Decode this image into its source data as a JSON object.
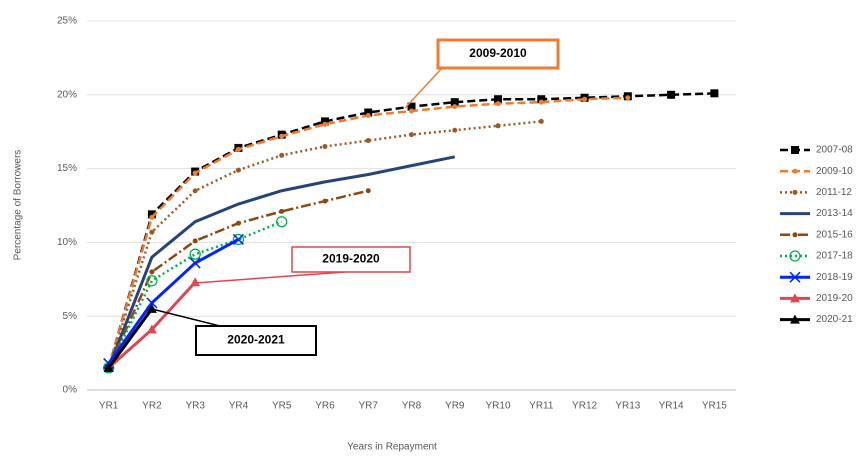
{
  "chart_data": {
    "type": "line",
    "ylabel": "Percentage of Borrowers",
    "xlabel": "Years in Repayment",
    "categories": [
      "YR1",
      "YR2",
      "YR3",
      "YR4",
      "YR5",
      "YR6",
      "YR7",
      "YR8",
      "YR9",
      "YR10",
      "YR11",
      "YR12",
      "YR13",
      "YR14",
      "YR15"
    ],
    "ylim": [
      0,
      25
    ],
    "yticks": [
      {
        "value": 0,
        "label": "0%"
      },
      {
        "value": 5,
        "label": "5%"
      },
      {
        "value": 10,
        "label": "10%"
      },
      {
        "value": 15,
        "label": "15%"
      },
      {
        "value": 20,
        "label": "20%"
      },
      {
        "value": 25,
        "label": "25%"
      }
    ],
    "grid": true,
    "legend": "right",
    "series": [
      {
        "name": "2007-08",
        "color": "#000000",
        "dash": "dashed",
        "marker": "square",
        "values": [
          1.5,
          11.9,
          14.8,
          16.4,
          17.3,
          18.2,
          18.8,
          19.2,
          19.5,
          19.7,
          19.7,
          19.8,
          19.9,
          20.0,
          20.1
        ]
      },
      {
        "name": "2009-10",
        "color": "#ed7d31",
        "dash": "dashed",
        "marker": "dot",
        "values": [
          1.5,
          11.7,
          14.7,
          16.3,
          17.2,
          18.0,
          18.6,
          18.9,
          19.2,
          19.4,
          19.5,
          19.7,
          19.8,
          null,
          null
        ]
      },
      {
        "name": "2011-12",
        "color": "#9c5a2a",
        "dash": "dotted",
        "marker": "dot",
        "values": [
          1.5,
          10.7,
          13.5,
          14.9,
          15.9,
          16.5,
          16.9,
          17.3,
          17.6,
          17.9,
          18.2,
          null,
          null,
          null,
          null
        ]
      },
      {
        "name": "2013-14",
        "color": "#264478",
        "dash": "solid",
        "marker": "none",
        "values": [
          1.5,
          9.0,
          11.4,
          12.6,
          13.5,
          14.1,
          14.6,
          15.2,
          15.8,
          null,
          null,
          null,
          null,
          null,
          null
        ]
      },
      {
        "name": "2015-16",
        "color": "#8a4a12",
        "dash": "dashdot",
        "marker": "dot",
        "values": [
          1.5,
          8.0,
          10.1,
          11.3,
          12.1,
          12.8,
          13.5,
          null,
          null,
          null,
          null,
          null,
          null,
          null,
          null
        ]
      },
      {
        "name": "2017-18",
        "color": "#00b050",
        "dash": "dotted",
        "marker": "circle",
        "values": [
          1.5,
          7.4,
          9.2,
          10.2,
          11.4,
          null,
          null,
          null,
          null,
          null,
          null,
          null,
          null,
          null,
          null
        ]
      },
      {
        "name": "2018-19",
        "color": "#0026ff",
        "dash": "solid",
        "marker": "x",
        "values": [
          1.8,
          5.9,
          8.6,
          10.2,
          null,
          null,
          null,
          null,
          null,
          null,
          null,
          null,
          null,
          null,
          null
        ]
      },
      {
        "name": "2019-20",
        "color": "#e0464e",
        "dash": "solid",
        "marker": "triangle",
        "values": [
          1.5,
          4.1,
          7.3,
          null,
          null,
          null,
          null,
          null,
          null,
          null,
          null,
          null,
          null,
          null,
          null
        ]
      },
      {
        "name": "2020-21",
        "color": "#000000",
        "dash": "solid",
        "marker": "triangle",
        "values": [
          1.5,
          5.5,
          null,
          null,
          null,
          null,
          null,
          null,
          null,
          null,
          null,
          null,
          null,
          null,
          null
        ]
      }
    ],
    "annotations": [
      {
        "text": "2009-2010",
        "color": "#ed7d31"
      },
      {
        "text": "2019-2020",
        "color": "#e0464e"
      },
      {
        "text": "2020-2021",
        "color": "#000000"
      }
    ]
  }
}
